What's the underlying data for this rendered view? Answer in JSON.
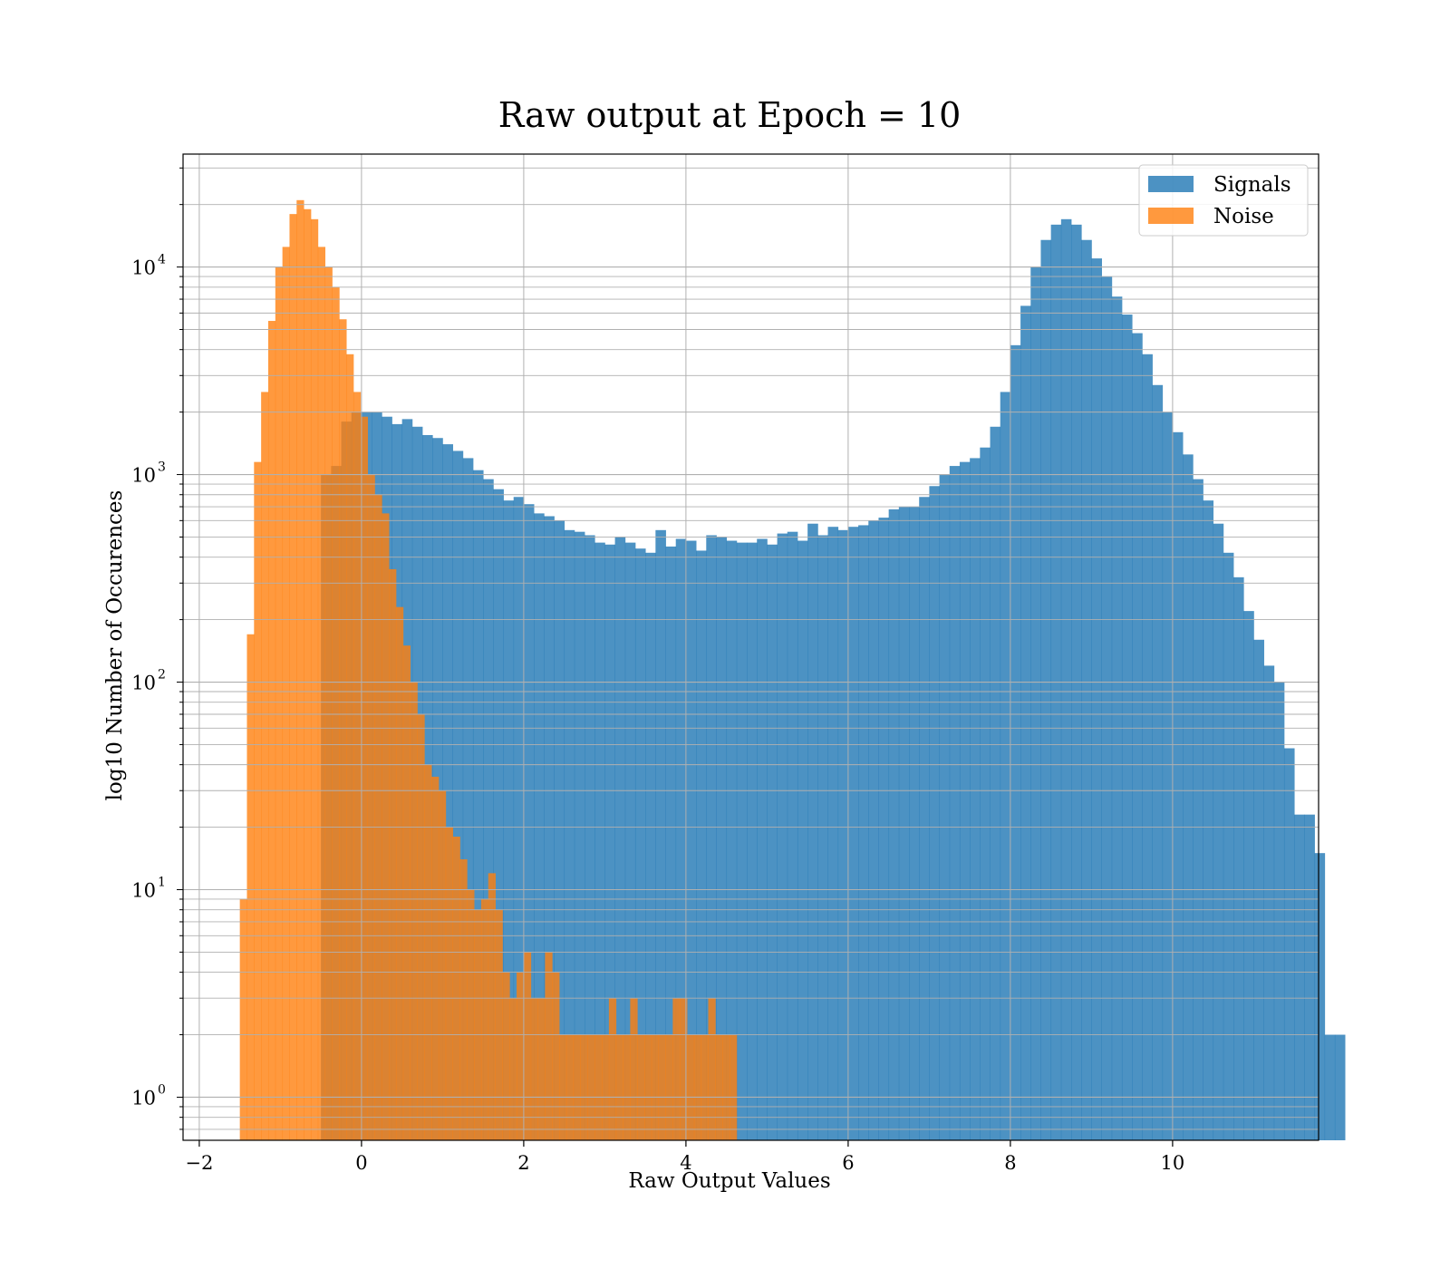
{
  "chart_data": {
    "type": "bar",
    "subtype": "histogram",
    "title": "Raw output at Epoch = 10",
    "xlabel": "Raw Output Values",
    "ylabel": "log10 Number of Occurences",
    "xlim": [
      -2.2,
      11.8
    ],
    "ylim": [
      0.62,
      35000
    ],
    "yscale": "log",
    "grid": true,
    "legend_position": "top-right",
    "x_ticks": [
      {
        "value": -2,
        "label": "−2"
      },
      {
        "value": 0,
        "label": "0"
      },
      {
        "value": 2,
        "label": "2"
      },
      {
        "value": 4,
        "label": "4"
      },
      {
        "value": 6,
        "label": "6"
      },
      {
        "value": 8,
        "label": "8"
      },
      {
        "value": 10,
        "label": "10"
      }
    ],
    "y_ticks": [
      {
        "value": 1,
        "base": "10",
        "exp": "0"
      },
      {
        "value": 10,
        "base": "10",
        "exp": "1"
      },
      {
        "value": 100,
        "base": "10",
        "exp": "2"
      },
      {
        "value": 1000,
        "base": "10",
        "exp": "3"
      },
      {
        "value": 10000,
        "base": "10",
        "exp": "4"
      }
    ],
    "series": [
      {
        "name": "Signals",
        "color": "#1f77b4",
        "opacity": 0.8,
        "bin_start": -1.5,
        "bin_width": 0.125,
        "counts": [
          0,
          0,
          0,
          0,
          0,
          0,
          0,
          0,
          1000,
          1100,
          1800,
          2000,
          2000,
          2000,
          1900,
          1750,
          1850,
          1700,
          1550,
          1500,
          1400,
          1300,
          1200,
          1050,
          950,
          850,
          750,
          780,
          720,
          650,
          630,
          600,
          540,
          530,
          510,
          470,
          460,
          500,
          470,
          440,
          420,
          540,
          450,
          490,
          480,
          430,
          510,
          500,
          480,
          470,
          470,
          490,
          460,
          520,
          530,
          480,
          580,
          510,
          560,
          540,
          560,
          570,
          600,
          620,
          680,
          700,
          700,
          780,
          880,
          1000,
          1100,
          1150,
          1200,
          1350,
          1700,
          2500,
          4200,
          6500,
          10000,
          13500,
          16000,
          17000,
          16000,
          13500,
          11000,
          9000,
          7200,
          5900,
          4800,
          3800,
          2700,
          2000,
          1600,
          1250,
          950,
          750,
          580,
          420,
          320,
          220,
          160,
          120,
          100,
          48,
          23,
          23,
          15,
          2,
          2
        ]
      },
      {
        "name": "Noise",
        "color": "#ff7f0e",
        "opacity": 0.8,
        "bin_start": -1.5,
        "bin_width": 0.0875,
        "counts": [
          9,
          170,
          1150,
          2500,
          5500,
          10000,
          12500,
          18000,
          21000,
          19000,
          17000,
          12500,
          10000,
          8000,
          5600,
          3800,
          2500,
          1900,
          1000,
          800,
          650,
          350,
          230,
          150,
          100,
          70,
          40,
          35,
          30,
          20,
          18,
          14,
          10,
          8,
          9,
          12,
          8,
          4,
          3,
          4,
          5,
          3,
          3,
          5,
          4,
          2,
          2,
          2,
          2,
          2,
          2,
          2,
          3,
          2,
          2,
          3,
          2,
          2,
          2,
          2,
          2,
          3,
          3,
          2,
          2,
          2,
          3,
          2,
          2,
          2
        ]
      }
    ]
  }
}
